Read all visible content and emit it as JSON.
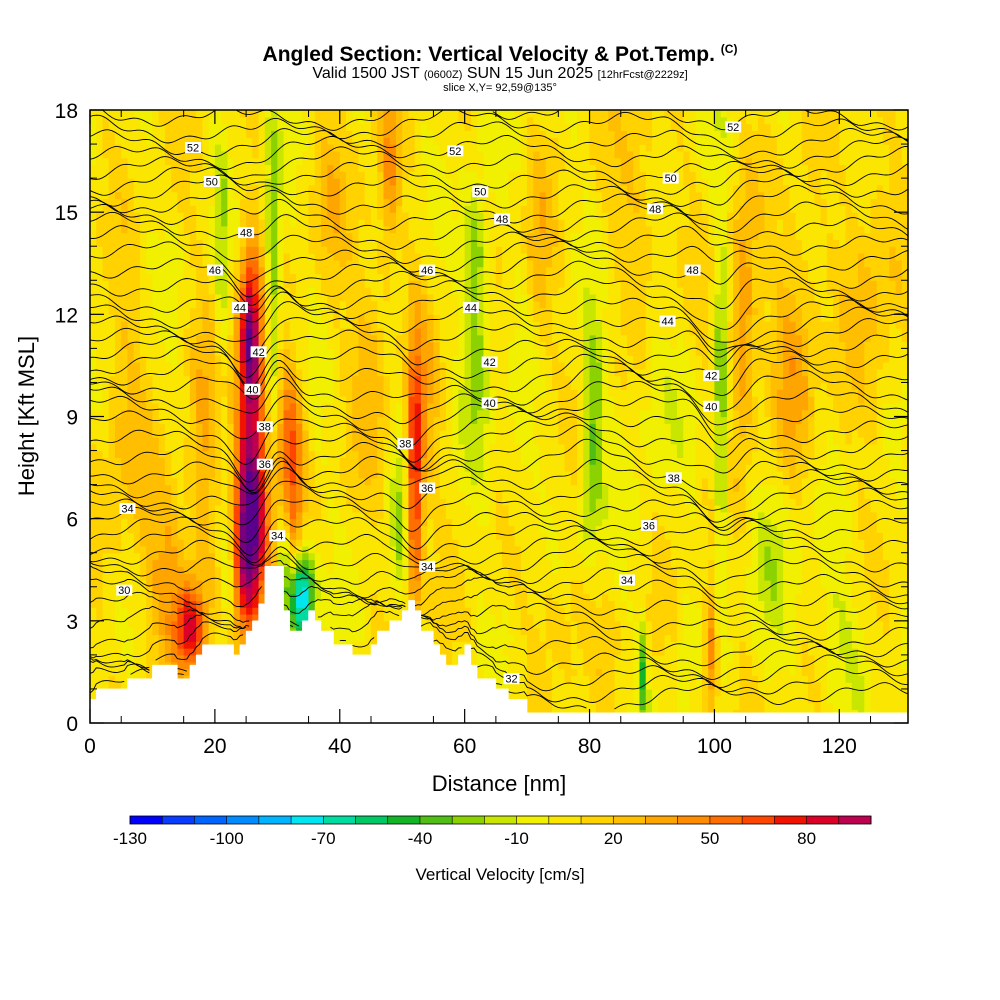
{
  "title": {
    "main": "Angled Section: Vertical Velocity & Pot.Temp.",
    "copyright": "(C)",
    "valid_pre": "Valid 1500 JST",
    "valid_zulu": "(0600Z)",
    "valid_post": "SUN 15 Jun 2025",
    "forecast": "[12hrFcst@2229z]",
    "slice": "slice X,Y= 92,59@135°"
  },
  "chart_data": {
    "type": "heatmap",
    "xlabel": "Distance [nm]",
    "ylabel": "Height [Kft MSL]",
    "xlim": [
      0,
      131
    ],
    "ylim": [
      0,
      18
    ],
    "x_ticks": [
      "0",
      "20",
      "40",
      "60",
      "80",
      "100",
      "120"
    ],
    "y_ticks": [
      "0",
      "3",
      "6",
      "9",
      "12",
      "15",
      "18"
    ],
    "x_tick_values": [
      0,
      20,
      40,
      60,
      80,
      100,
      120
    ],
    "y_tick_values": [
      0,
      3,
      6,
      9,
      12,
      15,
      18
    ],
    "colorbar": {
      "title": "Vertical Velocity [cm/s]",
      "min": -130,
      "max": 100,
      "step": 10,
      "labels": [
        "-130",
        "-100",
        "-70",
        "-40",
        "-10",
        "20",
        "50",
        "80"
      ],
      "label_values": [
        -130,
        -100,
        -70,
        -40,
        -10,
        20,
        50,
        80
      ],
      "colors": [
        "#0000ff",
        "#0a3cff",
        "#0064ff",
        "#008cff",
        "#00b4ff",
        "#00e6f0",
        "#00dca0",
        "#00c864",
        "#14b428",
        "#50be14",
        "#8cd200",
        "#c8e600",
        "#f0f000",
        "#fae600",
        "#ffd200",
        "#ffbe00",
        "#ffa500",
        "#ff8c00",
        "#ff6e00",
        "#ff4600",
        "#f01400",
        "#dc0028",
        "#be0050",
        "#9b0064",
        "#780078",
        "#5a008c"
      ]
    },
    "background_velocity": 5,
    "terrain_kft": [
      [
        0,
        0.7
      ],
      [
        1,
        0.7
      ],
      [
        1,
        1.0
      ],
      [
        6,
        1.0
      ],
      [
        6,
        1.3
      ],
      [
        10,
        1.3
      ],
      [
        10,
        1.7
      ],
      [
        14,
        1.7
      ],
      [
        14,
        1.3
      ],
      [
        16,
        1.3
      ],
      [
        16,
        1.7
      ],
      [
        17,
        1.7
      ],
      [
        17,
        2.0
      ],
      [
        18,
        2.0
      ],
      [
        18,
        2.3
      ],
      [
        23,
        2.3
      ],
      [
        23,
        2.0
      ],
      [
        24,
        2.0
      ],
      [
        24,
        2.3
      ],
      [
        25,
        2.3
      ],
      [
        25,
        2.7
      ],
      [
        26,
        2.7
      ],
      [
        26,
        3.0
      ],
      [
        27,
        3.0
      ],
      [
        27,
        3.5
      ],
      [
        28,
        3.5
      ],
      [
        28,
        4.6
      ],
      [
        31,
        4.6
      ],
      [
        31,
        3.3
      ],
      [
        32,
        3.3
      ],
      [
        32,
        2.7
      ],
      [
        34,
        2.7
      ],
      [
        34,
        3.0
      ],
      [
        35,
        3.0
      ],
      [
        35,
        3.3
      ],
      [
        36,
        3.3
      ],
      [
        36,
        3.0
      ],
      [
        37,
        3.0
      ],
      [
        37,
        2.7
      ],
      [
        39,
        2.7
      ],
      [
        39,
        2.3
      ],
      [
        42,
        2.3
      ],
      [
        42,
        2.0
      ],
      [
        45,
        2.0
      ],
      [
        45,
        2.3
      ],
      [
        46,
        2.3
      ],
      [
        46,
        2.7
      ],
      [
        48,
        2.7
      ],
      [
        48,
        3.0
      ],
      [
        50,
        3.0
      ],
      [
        50,
        3.3
      ],
      [
        51,
        3.3
      ],
      [
        51,
        3.6
      ],
      [
        52,
        3.6
      ],
      [
        52,
        3.3
      ],
      [
        53,
        3.3
      ],
      [
        53,
        2.7
      ],
      [
        55,
        2.7
      ],
      [
        55,
        2.3
      ],
      [
        56,
        2.3
      ],
      [
        56,
        2.0
      ],
      [
        57,
        2.0
      ],
      [
        57,
        1.7
      ],
      [
        59,
        1.7
      ],
      [
        59,
        2.0
      ],
      [
        60,
        2.0
      ],
      [
        60,
        2.3
      ],
      [
        61,
        2.3
      ],
      [
        61,
        1.7
      ],
      [
        62,
        1.7
      ],
      [
        62,
        1.3
      ],
      [
        65,
        1.3
      ],
      [
        65,
        1.0
      ],
      [
        67,
        1.0
      ],
      [
        67,
        0.7
      ],
      [
        70,
        0.7
      ],
      [
        70,
        0.3
      ],
      [
        131,
        0.3
      ]
    ],
    "velocity_features": [
      {
        "x": 26,
        "y": 8.5,
        "sx": 1.8,
        "sy": 3.2,
        "v": 80
      },
      {
        "x": 25.5,
        "y": 5.5,
        "sx": 1.6,
        "sy": 1.8,
        "v": 85
      },
      {
        "x": 25.5,
        "y": 11.5,
        "sx": 1.0,
        "sy": 1.5,
        "v": 65
      },
      {
        "x": 32,
        "y": 8.2,
        "sx": 1.6,
        "sy": 1.6,
        "v": 55
      },
      {
        "x": 31,
        "y": 5.5,
        "sx": 1.8,
        "sy": 1.3,
        "v": 45
      },
      {
        "x": 29.2,
        "y": 12.5,
        "sx": 0.9,
        "sy": 3.5,
        "v": -45
      },
      {
        "x": 31,
        "y": 5.2,
        "sx": 0.9,
        "sy": 1.5,
        "v": -70
      },
      {
        "x": 34,
        "y": 3.8,
        "sx": 1.3,
        "sy": 1.0,
        "v": -95
      },
      {
        "x": 22,
        "y": 4.5,
        "sx": 0.8,
        "sy": 1.5,
        "v": -30
      },
      {
        "x": 16,
        "y": 2.8,
        "sx": 1.6,
        "sy": 0.8,
        "v": 70
      },
      {
        "x": 12.5,
        "y": 4.5,
        "sx": 3.0,
        "sy": 2.0,
        "v": 28
      },
      {
        "x": 18,
        "y": 6.8,
        "sx": 1.5,
        "sy": 3.5,
        "v": 25
      },
      {
        "x": 21,
        "y": 13.5,
        "sx": 0.7,
        "sy": 2.8,
        "v": -22
      },
      {
        "x": 52,
        "y": 7.0,
        "sx": 0.9,
        "sy": 2.8,
        "v": 75
      },
      {
        "x": 49.5,
        "y": 6.0,
        "sx": 1.0,
        "sy": 2.0,
        "v": -20
      },
      {
        "x": 54,
        "y": 9.5,
        "sx": 1.5,
        "sy": 2.0,
        "v": 20
      },
      {
        "x": 62,
        "y": 11.5,
        "sx": 1.5,
        "sy": 2.5,
        "v": -32
      },
      {
        "x": 61.5,
        "y": 14.0,
        "sx": 1.2,
        "sy": 1.2,
        "v": -20
      },
      {
        "x": 80.5,
        "y": 9.0,
        "sx": 1.2,
        "sy": 1.8,
        "v": -38
      },
      {
        "x": 80,
        "y": 6.2,
        "sx": 1.2,
        "sy": 1.0,
        "v": -18
      },
      {
        "x": 101,
        "y": 9.0,
        "sx": 0.8,
        "sy": 4.0,
        "v": -38
      },
      {
        "x": 104.5,
        "y": 11.5,
        "sx": 1.5,
        "sy": 2.5,
        "v": 40
      },
      {
        "x": 99.5,
        "y": 2.0,
        "sx": 0.8,
        "sy": 1.5,
        "v": 50
      },
      {
        "x": 88.5,
        "y": 1.5,
        "sx": 0.5,
        "sy": 1.2,
        "v": -40
      },
      {
        "x": 95,
        "y": 1.5,
        "sx": 0.6,
        "sy": 1.2,
        "v": -20
      },
      {
        "x": 45,
        "y": 11,
        "sx": 2.0,
        "sy": 2.5,
        "v": 22
      },
      {
        "x": 72,
        "y": 13.5,
        "sx": 1.5,
        "sy": 2.0,
        "v": 20
      },
      {
        "x": 75,
        "y": 3.0,
        "sx": 2.5,
        "sy": 1.2,
        "v": 18
      },
      {
        "x": 110,
        "y": 5.0,
        "sx": 3.0,
        "sy": 2.0,
        "v": -15
      },
      {
        "x": 120,
        "y": 2.5,
        "sx": 4.0,
        "sy": 1.5,
        "v": -14
      },
      {
        "x": 88,
        "y": 15.5,
        "sx": 3.0,
        "sy": 2.0,
        "v": 18
      },
      {
        "x": 125,
        "y": 13.0,
        "sx": 3.0,
        "sy": 3.0,
        "v": 18
      },
      {
        "x": 113,
        "y": 11.0,
        "sx": 2.5,
        "sy": 2.5,
        "v": 30
      },
      {
        "x": 68,
        "y": 7.5,
        "sx": 2.0,
        "sy": 1.5,
        "v": -12
      },
      {
        "x": 90,
        "y": 9.5,
        "sx": 3.0,
        "sy": 2.0,
        "v": -10
      },
      {
        "x": 39,
        "y": 15.5,
        "sx": 2.5,
        "sy": 2.0,
        "v": 15
      },
      {
        "x": 5,
        "y": 9.0,
        "sx": 2.5,
        "sy": 3.0,
        "v": 18
      },
      {
        "x": 48,
        "y": 16.5,
        "sx": 1.0,
        "sy": 2.0,
        "v": 30
      }
    ],
    "isentrope_labels": [
      {
        "text": "52",
        "x": 16.5,
        "y": 16.9
      },
      {
        "text": "52",
        "x": 58.5,
        "y": 16.8
      },
      {
        "text": "52",
        "x": 103,
        "y": 17.5
      },
      {
        "text": "50",
        "x": 19.5,
        "y": 15.9
      },
      {
        "text": "50",
        "x": 62.5,
        "y": 15.6
      },
      {
        "text": "50",
        "x": 93,
        "y": 16.0
      },
      {
        "text": "48",
        "x": 25,
        "y": 14.4
      },
      {
        "text": "48",
        "x": 66,
        "y": 14.8
      },
      {
        "text": "48",
        "x": 90.5,
        "y": 15.1
      },
      {
        "text": "48",
        "x": 96.5,
        "y": 13.3
      },
      {
        "text": "46",
        "x": 20,
        "y": 13.3
      },
      {
        "text": "46",
        "x": 54,
        "y": 13.3
      },
      {
        "text": "44",
        "x": 24,
        "y": 12.2
      },
      {
        "text": "44",
        "x": 61,
        "y": 12.2
      },
      {
        "text": "44",
        "x": 92.5,
        "y": 11.8
      },
      {
        "text": "42",
        "x": 27,
        "y": 10.9
      },
      {
        "text": "42",
        "x": 64,
        "y": 10.6
      },
      {
        "text": "42",
        "x": 99.5,
        "y": 10.2
      },
      {
        "text": "40",
        "x": 26,
        "y": 9.8
      },
      {
        "text": "40",
        "x": 64,
        "y": 9.4
      },
      {
        "text": "40",
        "x": 99.5,
        "y": 9.3
      },
      {
        "text": "38",
        "x": 28,
        "y": 8.7
      },
      {
        "text": "38",
        "x": 50.5,
        "y": 8.2
      },
      {
        "text": "38",
        "x": 93.5,
        "y": 7.2
      },
      {
        "text": "36",
        "x": 28,
        "y": 7.6
      },
      {
        "text": "36",
        "x": 54,
        "y": 6.9
      },
      {
        "text": "36",
        "x": 89.5,
        "y": 5.8
      },
      {
        "text": "34",
        "x": 6,
        "y": 6.3
      },
      {
        "text": "34",
        "x": 30,
        "y": 5.5
      },
      {
        "text": "34",
        "x": 54,
        "y": 4.6
      },
      {
        "text": "34",
        "x": 86,
        "y": 4.2
      },
      {
        "text": "30",
        "x": 5.5,
        "y": 3.9
      },
      {
        "text": "32",
        "x": 67.5,
        "y": 1.3
      }
    ]
  }
}
